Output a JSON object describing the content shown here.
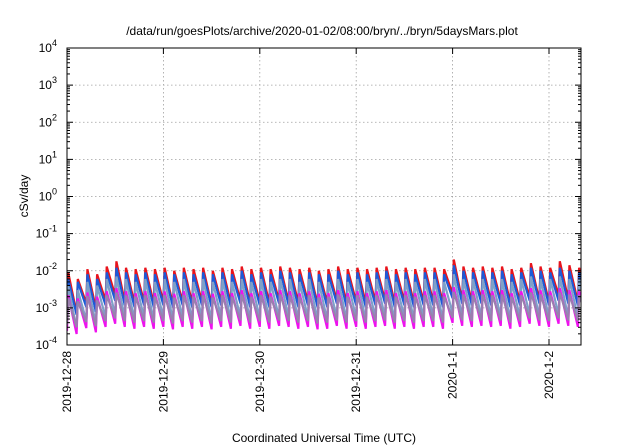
{
  "chart_data": {
    "type": "line",
    "title": "/data/run/goesPlots/archive/2020-01-02/08:00/bryn/../bryn/5daysMars.plot",
    "xlabel": "Coordinated Universal Time (UTC)",
    "ylabel": "cSv/day",
    "yscale": "log",
    "ylim": [
      0.0001,
      10000
    ],
    "y_ticks": [
      {
        "value": 0.0001,
        "base": "10",
        "exp": "-4"
      },
      {
        "value": 0.001,
        "base": "10",
        "exp": "-3"
      },
      {
        "value": 0.01,
        "base": "10",
        "exp": "-2"
      },
      {
        "value": 0.1,
        "base": "10",
        "exp": "-1"
      },
      {
        "value": 1,
        "base": "10",
        "exp": "0"
      },
      {
        "value": 10,
        "base": "10",
        "exp": "1"
      },
      {
        "value": 100,
        "base": "10",
        "exp": "2"
      },
      {
        "value": 1000,
        "base": "10",
        "exp": "3"
      },
      {
        "value": 10000,
        "base": "10",
        "exp": "4"
      }
    ],
    "x_ticks": [
      {
        "value": 0,
        "label": "2019-12-28"
      },
      {
        "value": 1,
        "label": "2019-12-29"
      },
      {
        "value": 2,
        "label": "2019-12-30"
      },
      {
        "value": 3,
        "label": "2019-12-31"
      },
      {
        "value": 4,
        "label": "2020-1-1"
      },
      {
        "value": 5,
        "label": "2020-1-2"
      }
    ],
    "x_unit": "days from 2019-12-28 00:00 UTC",
    "xlim": [
      0,
      5.35
    ],
    "grid": true,
    "legend": "none",
    "sawtooth": {
      "period_days": 0.1,
      "start_day": 0.0
    },
    "series": [
      {
        "color": "#e8141c",
        "peaks": [
          0.009,
          0.006,
          0.011,
          0.008,
          0.013,
          0.018,
          0.012,
          0.011,
          0.012,
          0.011,
          0.012,
          0.01,
          0.012,
          0.011,
          0.012,
          0.01,
          0.012,
          0.011,
          0.013,
          0.011,
          0.012,
          0.011,
          0.013,
          0.012,
          0.011,
          0.012,
          0.01,
          0.011,
          0.013,
          0.011,
          0.012,
          0.011,
          0.012,
          0.013,
          0.011,
          0.012,
          0.011,
          0.012,
          0.012,
          0.011,
          0.02,
          0.013,
          0.012,
          0.013,
          0.012,
          0.013,
          0.011,
          0.012,
          0.016,
          0.013,
          0.012,
          0.018,
          0.014,
          0.012
        ],
        "troughs_ratio": 0.12
      },
      {
        "color": "#1c5ad8",
        "peaks": [
          0.006,
          0.005,
          0.008,
          0.006,
          0.009,
          0.012,
          0.009,
          0.008,
          0.009,
          0.008,
          0.009,
          0.008,
          0.009,
          0.008,
          0.009,
          0.008,
          0.009,
          0.008,
          0.01,
          0.008,
          0.009,
          0.008,
          0.01,
          0.009,
          0.008,
          0.009,
          0.008,
          0.008,
          0.01,
          0.008,
          0.009,
          0.008,
          0.009,
          0.01,
          0.008,
          0.009,
          0.008,
          0.009,
          0.009,
          0.008,
          0.014,
          0.01,
          0.009,
          0.01,
          0.009,
          0.01,
          0.008,
          0.009,
          0.012,
          0.01,
          0.009,
          0.012,
          0.01,
          0.009
        ],
        "troughs_ratio": 0.13
      },
      {
        "color": "#7fa0c8",
        "peaks": [
          0.004,
          0.003,
          0.005,
          0.004,
          0.006,
          0.007,
          0.006,
          0.005,
          0.006,
          0.005,
          0.006,
          0.005,
          0.006,
          0.005,
          0.006,
          0.005,
          0.006,
          0.005,
          0.006,
          0.005,
          0.006,
          0.005,
          0.006,
          0.006,
          0.005,
          0.006,
          0.005,
          0.005,
          0.006,
          0.005,
          0.006,
          0.005,
          0.006,
          0.006,
          0.005,
          0.006,
          0.005,
          0.006,
          0.006,
          0.005,
          0.008,
          0.006,
          0.006,
          0.006,
          0.006,
          0.006,
          0.005,
          0.006,
          0.007,
          0.006,
          0.006,
          0.007,
          0.006,
          0.006
        ],
        "troughs_ratio": 0.09
      },
      {
        "color": "#ee12ee",
        "peaks": [
          0.0022,
          0.0018,
          0.0026,
          0.002,
          0.0028,
          0.0034,
          0.0028,
          0.0025,
          0.0028,
          0.0025,
          0.0028,
          0.0024,
          0.0028,
          0.0025,
          0.0028,
          0.0024,
          0.0028,
          0.0025,
          0.003,
          0.0025,
          0.0028,
          0.0025,
          0.003,
          0.0028,
          0.0025,
          0.0028,
          0.0024,
          0.0025,
          0.003,
          0.0025,
          0.0028,
          0.0025,
          0.0028,
          0.003,
          0.0025,
          0.0028,
          0.0025,
          0.0028,
          0.0028,
          0.0025,
          0.0036,
          0.003,
          0.0028,
          0.003,
          0.0028,
          0.003,
          0.0025,
          0.0028,
          0.0034,
          0.003,
          0.0028,
          0.0034,
          0.003,
          0.0028
        ],
        "troughs_ratio": 0.11
      },
      {
        "color": "#9a7fae",
        "peaks": [
          0.0018,
          0.0015,
          0.0021,
          0.0016,
          0.0022,
          0.0026,
          0.0022,
          0.002,
          0.0022,
          0.002,
          0.0022,
          0.0019,
          0.0022,
          0.002,
          0.0022,
          0.0019,
          0.0022,
          0.002,
          0.0023,
          0.002,
          0.0022,
          0.002,
          0.0023,
          0.0022,
          0.002,
          0.0022,
          0.0019,
          0.002,
          0.0023,
          0.002,
          0.0022,
          0.002,
          0.0022,
          0.0023,
          0.002,
          0.0022,
          0.002,
          0.0022,
          0.0022,
          0.002,
          0.0027,
          0.0023,
          0.0022,
          0.0023,
          0.0022,
          0.0023,
          0.002,
          0.0022,
          0.0026,
          0.0023,
          0.0022,
          0.0026,
          0.0023,
          0.0022
        ],
        "troughs_ratio": 0.2
      }
    ]
  }
}
